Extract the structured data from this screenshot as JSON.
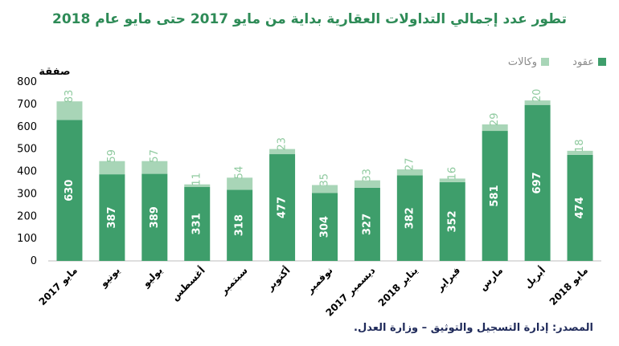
{
  "title": "تطور عدد  إجمالي التداولات العقارية بداية من مايو 2017 حتى مايو عام  2018",
  "source": "المصدر: إدارة التسجيل والتوثيق – وزارة العدل.",
  "colors": {
    "contracts": "#3e9e6b",
    "agencies": "#a8d5b7",
    "label_agencies": "#8fca9f",
    "title": "#2e8b57"
  },
  "chart_data": {
    "type": "bar",
    "stacked": true,
    "ylabel": "صفقة",
    "ylim": [
      0,
      800
    ],
    "yticks": [
      0,
      100,
      200,
      300,
      400,
      500,
      600,
      700,
      800
    ],
    "legend": "top-right",
    "categories": [
      "مايو 2017",
      "يونيو",
      "يوليو",
      "أغسطس",
      "سبتمبر",
      "أكتوبر",
      "نوفمبر",
      "ديسمبر 2017",
      "يناير 2018",
      "فبراير",
      "مارس",
      "أبريل",
      "مايو 2018"
    ],
    "series": [
      {
        "name": "عقود",
        "values": [
          630,
          387,
          389,
          331,
          318,
          477,
          304,
          327,
          382,
          352,
          581,
          697,
          474
        ]
      },
      {
        "name": "وكالات",
        "values": [
          83,
          59,
          57,
          11,
          54,
          23,
          35,
          33,
          27,
          16,
          29,
          20,
          18
        ]
      }
    ]
  }
}
